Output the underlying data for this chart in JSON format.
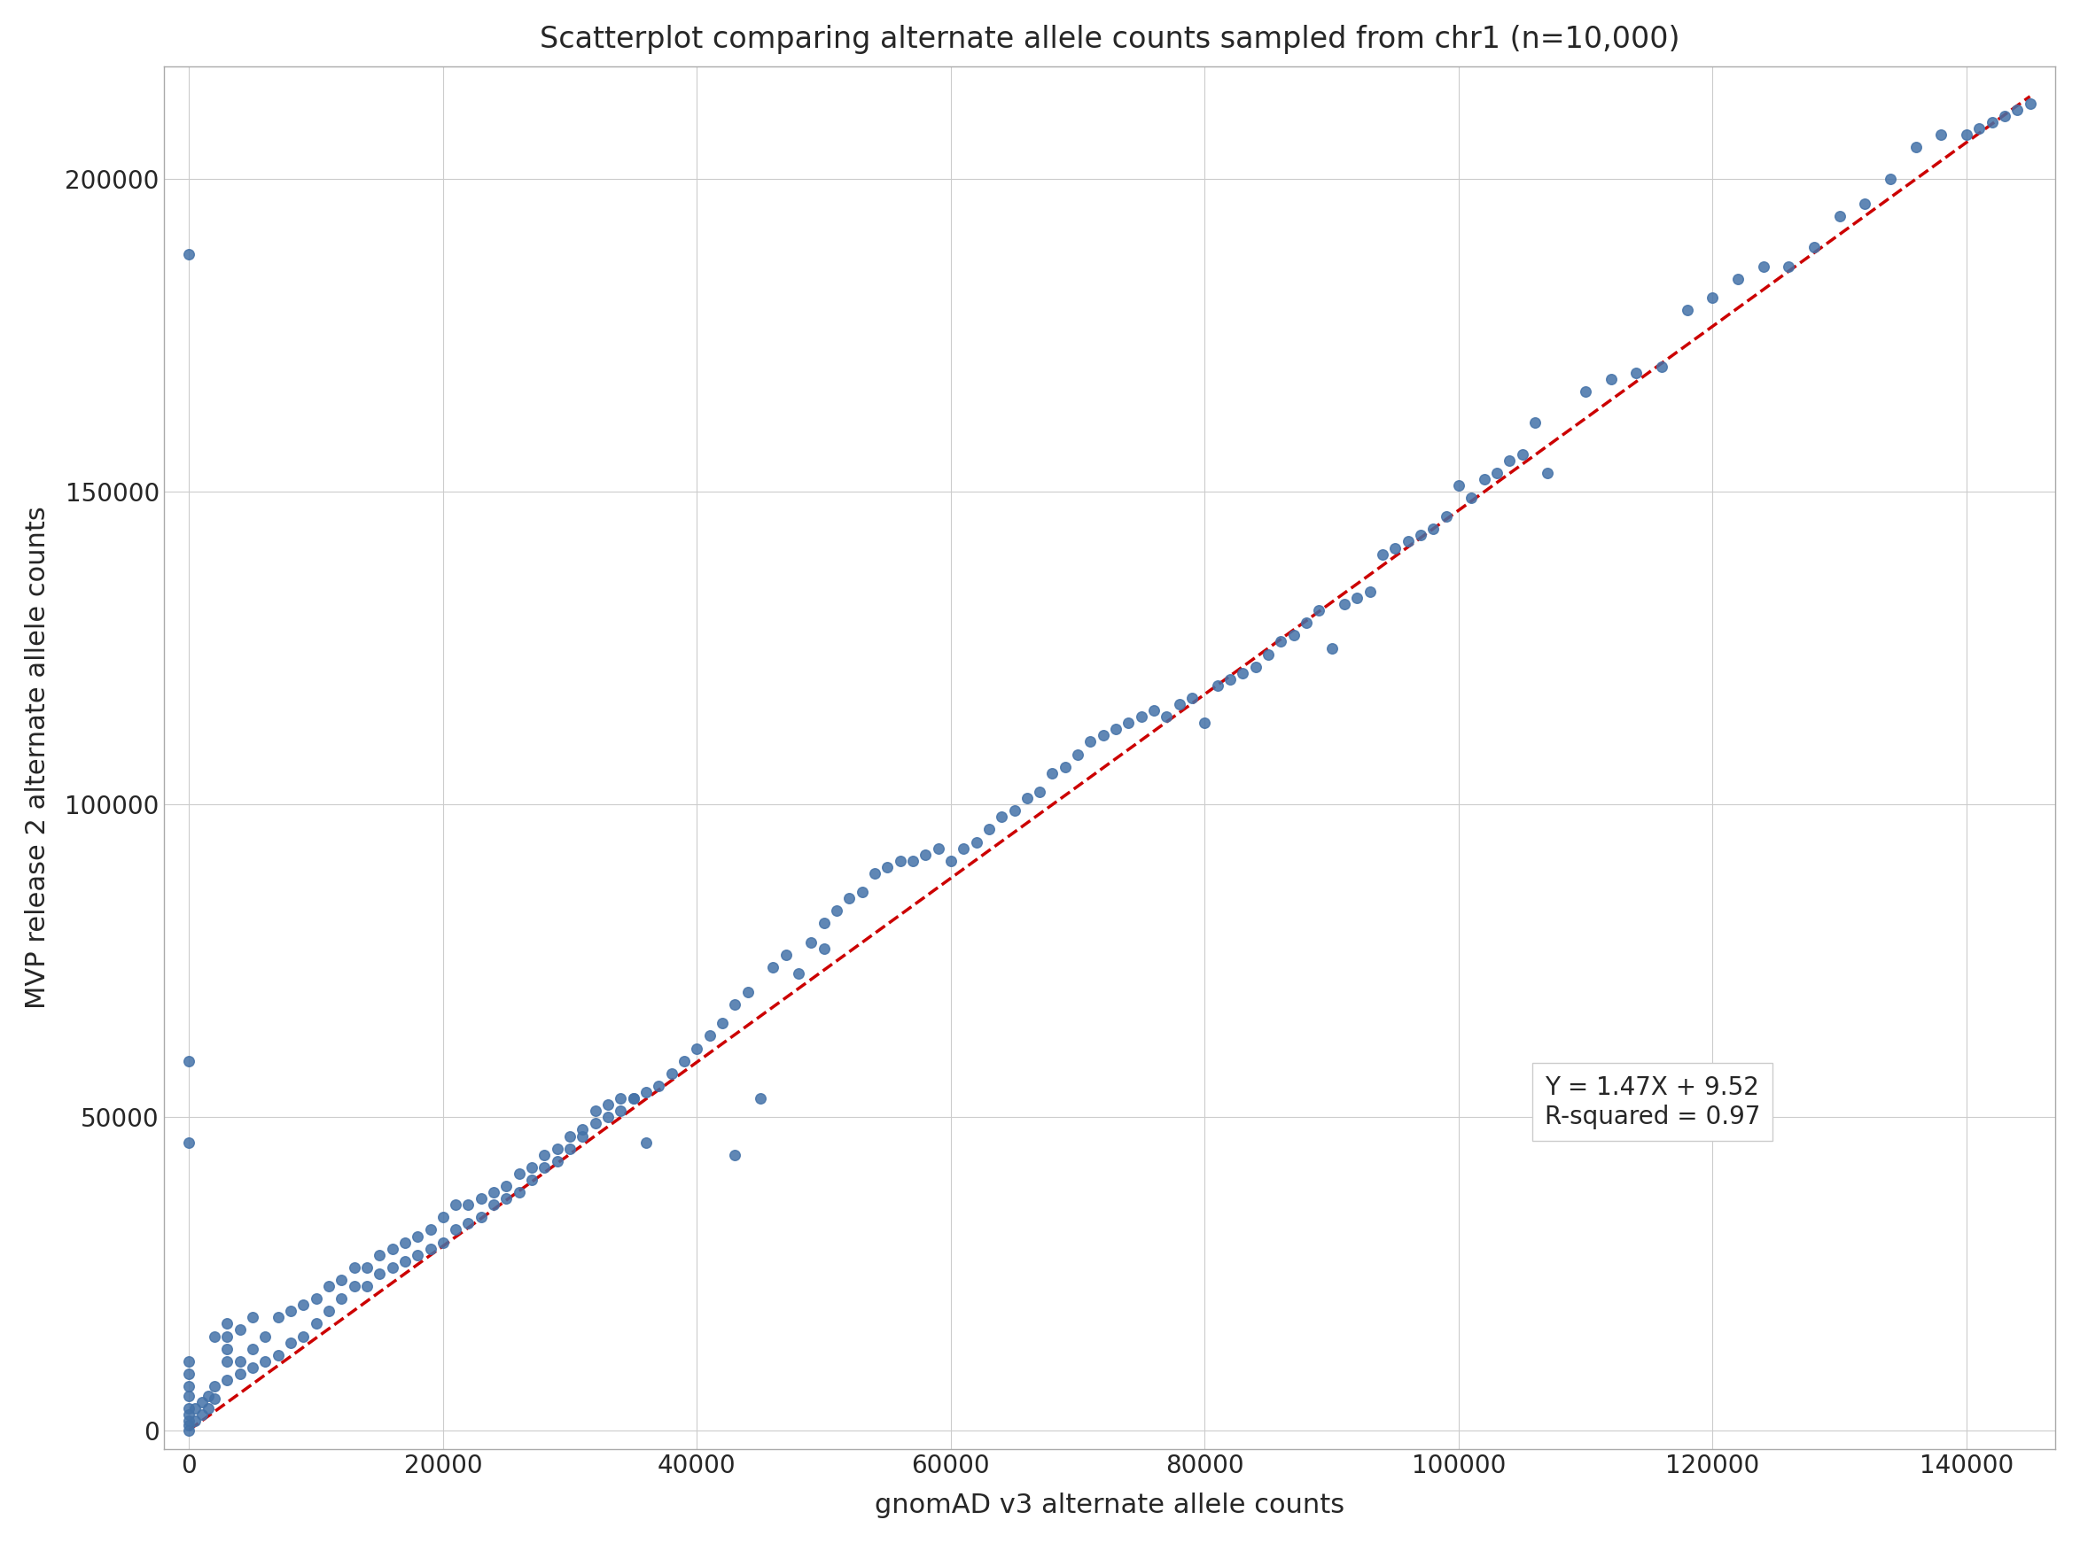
{
  "title": "Scatterplot comparing alternate allele counts sampled from chr1 (n=10,000)",
  "xlabel": "gnomAD v3 alternate allele counts",
  "ylabel": "MVP release 2 alternate allele counts",
  "regression_label": "Y = 1.47X + 9.52\nR-squared = 0.97",
  "regression_slope": 1.47,
  "regression_intercept": 9.52,
  "dot_color": "#4472a8",
  "line_color": "#cc0000",
  "background_color": "#ffffff",
  "grid_color": "#cccccc",
  "xlim": [
    -2000,
    147000
  ],
  "ylim": [
    -3000,
    218000
  ],
  "xticks": [
    0,
    20000,
    40000,
    60000,
    80000,
    100000,
    120000,
    140000
  ],
  "yticks": [
    0,
    50000,
    100000,
    150000,
    200000
  ],
  "title_fontsize": 24,
  "label_fontsize": 22,
  "tick_fontsize": 20,
  "annotation_fontsize": 20,
  "scatter_size": 70,
  "line_width": 2.5,
  "scatter_points": [
    [
      0,
      0
    ],
    [
      0,
      800
    ],
    [
      0,
      1500
    ],
    [
      0,
      2500
    ],
    [
      0,
      3500
    ],
    [
      0,
      5500
    ],
    [
      0,
      7000
    ],
    [
      0,
      9000
    ],
    [
      0,
      11000
    ],
    [
      0,
      188000
    ],
    [
      0,
      59000
    ],
    [
      0,
      46000
    ],
    [
      500,
      1500
    ],
    [
      500,
      3500
    ],
    [
      1000,
      2500
    ],
    [
      1000,
      4500
    ],
    [
      1500,
      3500
    ],
    [
      1500,
      5500
    ],
    [
      2000,
      5000
    ],
    [
      2000,
      7000
    ],
    [
      2000,
      15000
    ],
    [
      3000,
      8000
    ],
    [
      3000,
      11000
    ],
    [
      3000,
      13000
    ],
    [
      3000,
      15000
    ],
    [
      3000,
      17000
    ],
    [
      4000,
      9000
    ],
    [
      4000,
      11000
    ],
    [
      4000,
      16000
    ],
    [
      5000,
      10000
    ],
    [
      5000,
      13000
    ],
    [
      5000,
      18000
    ],
    [
      6000,
      11000
    ],
    [
      6000,
      15000
    ],
    [
      7000,
      12000
    ],
    [
      7000,
      18000
    ],
    [
      8000,
      14000
    ],
    [
      8000,
      19000
    ],
    [
      9000,
      15000
    ],
    [
      9000,
      20000
    ],
    [
      10000,
      17000
    ],
    [
      10000,
      21000
    ],
    [
      11000,
      19000
    ],
    [
      11000,
      23000
    ],
    [
      12000,
      21000
    ],
    [
      12000,
      24000
    ],
    [
      13000,
      23000
    ],
    [
      13000,
      26000
    ],
    [
      14000,
      23000
    ],
    [
      14000,
      26000
    ],
    [
      15000,
      25000
    ],
    [
      15000,
      28000
    ],
    [
      16000,
      26000
    ],
    [
      16000,
      29000
    ],
    [
      17000,
      27000
    ],
    [
      17000,
      30000
    ],
    [
      18000,
      28000
    ],
    [
      18000,
      31000
    ],
    [
      19000,
      29000
    ],
    [
      19000,
      32000
    ],
    [
      20000,
      30000
    ],
    [
      20000,
      34000
    ],
    [
      21000,
      32000
    ],
    [
      21000,
      36000
    ],
    [
      22000,
      33000
    ],
    [
      22000,
      36000
    ],
    [
      23000,
      34000
    ],
    [
      23000,
      37000
    ],
    [
      24000,
      36000
    ],
    [
      24000,
      38000
    ],
    [
      25000,
      37000
    ],
    [
      25000,
      39000
    ],
    [
      26000,
      38000
    ],
    [
      26000,
      41000
    ],
    [
      27000,
      40000
    ],
    [
      27000,
      42000
    ],
    [
      28000,
      42000
    ],
    [
      28000,
      44000
    ],
    [
      29000,
      43000
    ],
    [
      29000,
      45000
    ],
    [
      30000,
      45000
    ],
    [
      30000,
      47000
    ],
    [
      31000,
      47000
    ],
    [
      31000,
      48000
    ],
    [
      32000,
      49000
    ],
    [
      32000,
      51000
    ],
    [
      33000,
      50000
    ],
    [
      33000,
      52000
    ],
    [
      34000,
      51000
    ],
    [
      34000,
      53000
    ],
    [
      35000,
      53000
    ],
    [
      35000,
      53000
    ],
    [
      36000,
      46000
    ],
    [
      36000,
      54000
    ],
    [
      37000,
      55000
    ],
    [
      38000,
      57000
    ],
    [
      39000,
      59000
    ],
    [
      40000,
      61000
    ],
    [
      41000,
      63000
    ],
    [
      42000,
      65000
    ],
    [
      43000,
      44000
    ],
    [
      43000,
      68000
    ],
    [
      44000,
      70000
    ],
    [
      45000,
      53000
    ],
    [
      46000,
      74000
    ],
    [
      47000,
      76000
    ],
    [
      48000,
      73000
    ],
    [
      49000,
      78000
    ],
    [
      50000,
      77000
    ],
    [
      50000,
      81000
    ],
    [
      51000,
      83000
    ],
    [
      52000,
      85000
    ],
    [
      53000,
      86000
    ],
    [
      54000,
      89000
    ],
    [
      55000,
      90000
    ],
    [
      56000,
      91000
    ],
    [
      57000,
      91000
    ],
    [
      58000,
      92000
    ],
    [
      59000,
      93000
    ],
    [
      60000,
      91000
    ],
    [
      61000,
      93000
    ],
    [
      62000,
      94000
    ],
    [
      63000,
      96000
    ],
    [
      64000,
      98000
    ],
    [
      65000,
      99000
    ],
    [
      66000,
      101000
    ],
    [
      67000,
      102000
    ],
    [
      68000,
      105000
    ],
    [
      69000,
      106000
    ],
    [
      70000,
      108000
    ],
    [
      71000,
      110000
    ],
    [
      72000,
      111000
    ],
    [
      73000,
      112000
    ],
    [
      74000,
      113000
    ],
    [
      75000,
      114000
    ],
    [
      76000,
      115000
    ],
    [
      77000,
      114000
    ],
    [
      78000,
      116000
    ],
    [
      79000,
      117000
    ],
    [
      80000,
      113000
    ],
    [
      81000,
      119000
    ],
    [
      82000,
      120000
    ],
    [
      83000,
      121000
    ],
    [
      84000,
      122000
    ],
    [
      85000,
      124000
    ],
    [
      86000,
      126000
    ],
    [
      87000,
      127000
    ],
    [
      88000,
      129000
    ],
    [
      89000,
      131000
    ],
    [
      90000,
      125000
    ],
    [
      91000,
      132000
    ],
    [
      92000,
      133000
    ],
    [
      93000,
      134000
    ],
    [
      94000,
      140000
    ],
    [
      95000,
      141000
    ],
    [
      96000,
      142000
    ],
    [
      97000,
      143000
    ],
    [
      98000,
      144000
    ],
    [
      99000,
      146000
    ],
    [
      100000,
      151000
    ],
    [
      101000,
      149000
    ],
    [
      102000,
      152000
    ],
    [
      103000,
      153000
    ],
    [
      104000,
      155000
    ],
    [
      105000,
      156000
    ],
    [
      106000,
      161000
    ],
    [
      107000,
      153000
    ],
    [
      110000,
      166000
    ],
    [
      112000,
      168000
    ],
    [
      114000,
      169000
    ],
    [
      116000,
      170000
    ],
    [
      118000,
      179000
    ],
    [
      120000,
      181000
    ],
    [
      122000,
      184000
    ],
    [
      124000,
      186000
    ],
    [
      126000,
      186000
    ],
    [
      128000,
      189000
    ],
    [
      130000,
      194000
    ],
    [
      132000,
      196000
    ],
    [
      134000,
      200000
    ],
    [
      136000,
      205000
    ],
    [
      138000,
      207000
    ],
    [
      140000,
      207000
    ],
    [
      141000,
      208000
    ],
    [
      142000,
      209000
    ],
    [
      143000,
      210000
    ],
    [
      144000,
      211000
    ],
    [
      145000,
      212000
    ]
  ]
}
